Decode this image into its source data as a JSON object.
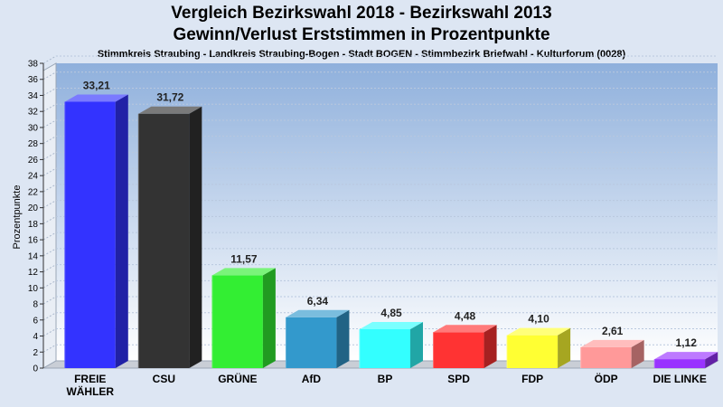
{
  "chart_data": {
    "type": "bar",
    "title": "Vergleich Bezirkswahl 2018 - Bezirkswahl 2013",
    "title_line2": "Gewinn/Verlust Erststimmen in Prozentpunkte",
    "subtitle": "Stimmkreis Straubing - Landkreis Straubing-Bogen - Stadt BOGEN - Stimmbezirk Briefwahl - Kulturforum (0028)",
    "ylabel": "Prozentpunkte",
    "xlabel": "",
    "ylim": [
      0,
      38
    ],
    "yticks": [
      0,
      2,
      4,
      6,
      8,
      10,
      12,
      14,
      16,
      18,
      20,
      22,
      24,
      26,
      28,
      30,
      32,
      34,
      36,
      38
    ],
    "grid": true,
    "categories": [
      "FREIE WÄHLER",
      "CSU",
      "GRÜNE",
      "AfD",
      "BP",
      "SPD",
      "FDP",
      "ÖDP",
      "DIE LINKE"
    ],
    "values": [
      33.21,
      31.72,
      11.57,
      6.34,
      4.85,
      4.48,
      4.1,
      2.61,
      1.12
    ],
    "value_labels": [
      "33,21",
      "31,72",
      "11,57",
      "6,34",
      "4,85",
      "4,48",
      "4,10",
      "2,61",
      "1,12"
    ],
    "colors": [
      "#3333ff",
      "#333333",
      "#33ee33",
      "#3399cc",
      "#33ffff",
      "#ff3333",
      "#ffff33",
      "#ff9999",
      "#9933ff"
    ]
  }
}
